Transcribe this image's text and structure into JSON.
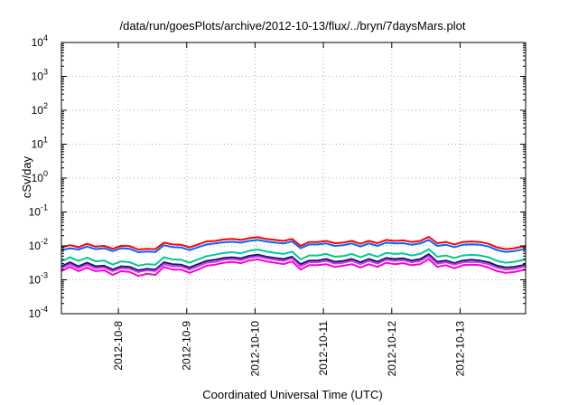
{
  "chart_data": {
    "type": "line",
    "title": "/data/run/goesPlots/archive/2012-10-13/flux/../bryn/7daysMars.plot",
    "xlabel": "Coordinated Universal Time (UTC)",
    "ylabel": "cSv/day",
    "yscale": "log",
    "ylim": [
      0.0001,
      10000
    ],
    "y_ticks": [
      {
        "base": "10",
        "exp": "4",
        "value": 10000
      },
      {
        "base": "10",
        "exp": "3",
        "value": 1000
      },
      {
        "base": "10",
        "exp": "2",
        "value": 100
      },
      {
        "base": "10",
        "exp": "1",
        "value": 10
      },
      {
        "base": "10",
        "exp": "0",
        "value": 1
      },
      {
        "base": "10",
        "exp": "-1",
        "value": 0.1
      },
      {
        "base": "10",
        "exp": "-2",
        "value": 0.01
      },
      {
        "base": "10",
        "exp": "-3",
        "value": 0.001
      },
      {
        "base": "10",
        "exp": "-4",
        "value": 0.0001
      }
    ],
    "xlim": [
      "2012-10-07 04:00",
      "2012-10-13 23:00"
    ],
    "x_ticks": [
      "2012-10-8",
      "2012-10-9",
      "2012-10-10",
      "2012-10-11",
      "2012-10-12",
      "2012-10-13"
    ],
    "x_tick_dates": [
      "2012-10-08",
      "2012-10-09",
      "2012-10-10",
      "2012-10-11",
      "2012-10-12",
      "2012-10-13"
    ],
    "grid": true,
    "x": [
      "2012-10-07 04:00",
      "2012-10-07 07:00",
      "2012-10-07 10:00",
      "2012-10-07 13:00",
      "2012-10-07 16:00",
      "2012-10-07 19:00",
      "2012-10-07 22:00",
      "2012-10-08 01:00",
      "2012-10-08 04:00",
      "2012-10-08 07:00",
      "2012-10-08 10:00",
      "2012-10-08 13:00",
      "2012-10-08 16:00",
      "2012-10-08 19:00",
      "2012-10-08 22:00",
      "2012-10-09 01:00",
      "2012-10-09 04:00",
      "2012-10-09 07:00",
      "2012-10-09 10:00",
      "2012-10-09 13:00",
      "2012-10-09 16:00",
      "2012-10-09 19:00",
      "2012-10-09 22:00",
      "2012-10-10 01:00",
      "2012-10-10 04:00",
      "2012-10-10 07:00",
      "2012-10-10 10:00",
      "2012-10-10 13:00",
      "2012-10-10 16:00",
      "2012-10-10 19:00",
      "2012-10-10 22:00",
      "2012-10-11 01:00",
      "2012-10-11 04:00",
      "2012-10-11 07:00",
      "2012-10-11 10:00",
      "2012-10-11 13:00",
      "2012-10-11 16:00",
      "2012-10-11 19:00",
      "2012-10-11 22:00",
      "2012-10-12 01:00",
      "2012-10-12 04:00",
      "2012-10-12 07:00",
      "2012-10-12 10:00",
      "2012-10-12 13:00",
      "2012-10-12 16:00",
      "2012-10-12 19:00",
      "2012-10-12 22:00",
      "2012-10-13 01:00",
      "2012-10-13 04:00",
      "2012-10-13 07:00",
      "2012-10-13 10:00",
      "2012-10-13 13:00",
      "2012-10-13 16:00",
      "2012-10-13 19:00",
      "2012-10-13 23:00"
    ],
    "series": [
      {
        "color": "#ff0000",
        "values": [
          0.009,
          0.0105,
          0.0092,
          0.0115,
          0.0095,
          0.01,
          0.0082,
          0.01,
          0.0098,
          0.0078,
          0.0082,
          0.008,
          0.0125,
          0.011,
          0.0108,
          0.009,
          0.011,
          0.0135,
          0.014,
          0.0155,
          0.016,
          0.015,
          0.017,
          0.018,
          0.016,
          0.015,
          0.014,
          0.016,
          0.01,
          0.013,
          0.013,
          0.014,
          0.012,
          0.0125,
          0.014,
          0.0115,
          0.014,
          0.012,
          0.015,
          0.014,
          0.0145,
          0.013,
          0.014,
          0.0185,
          0.012,
          0.013,
          0.011,
          0.013,
          0.0135,
          0.013,
          0.0115,
          0.009,
          0.008,
          0.0085,
          0.01
        ]
      },
      {
        "color": "#0066ff",
        "values": [
          0.0075,
          0.0085,
          0.0078,
          0.0095,
          0.008,
          0.0085,
          0.007,
          0.0085,
          0.0082,
          0.0065,
          0.0068,
          0.0066,
          0.0105,
          0.0092,
          0.009,
          0.0075,
          0.0092,
          0.011,
          0.0118,
          0.0128,
          0.0132,
          0.0125,
          0.014,
          0.015,
          0.0135,
          0.0125,
          0.0118,
          0.0135,
          0.0085,
          0.011,
          0.011,
          0.0118,
          0.01,
          0.0105,
          0.0118,
          0.0096,
          0.0118,
          0.01,
          0.0125,
          0.0118,
          0.012,
          0.0108,
          0.0118,
          0.015,
          0.01,
          0.0108,
          0.0092,
          0.0108,
          0.0112,
          0.0108,
          0.0096,
          0.0075,
          0.0066,
          0.007,
          0.0082
        ]
      },
      {
        "color": "#00c89b",
        "values": [
          0.0035,
          0.0046,
          0.0036,
          0.0045,
          0.0035,
          0.0037,
          0.0028,
          0.0035,
          0.0033,
          0.0026,
          0.0029,
          0.0028,
          0.0046,
          0.004,
          0.0039,
          0.0032,
          0.004,
          0.005,
          0.0055,
          0.0062,
          0.0065,
          0.006,
          0.0072,
          0.0078,
          0.0068,
          0.0062,
          0.0058,
          0.0068,
          0.004,
          0.0052,
          0.0052,
          0.0058,
          0.0048,
          0.005,
          0.0058,
          0.0046,
          0.0058,
          0.0048,
          0.0062,
          0.0058,
          0.006,
          0.0052,
          0.0058,
          0.008,
          0.0048,
          0.0052,
          0.0044,
          0.0052,
          0.0055,
          0.0052,
          0.0046,
          0.0036,
          0.0032,
          0.0034,
          0.004
        ]
      },
      {
        "color": "#1a1a55",
        "values": [
          0.0025,
          0.0033,
          0.0025,
          0.0032,
          0.0025,
          0.0026,
          0.002,
          0.0025,
          0.0024,
          0.0019,
          0.0021,
          0.002,
          0.0033,
          0.0029,
          0.0028,
          0.0023,
          0.0029,
          0.0036,
          0.0039,
          0.0044,
          0.0046,
          0.0043,
          0.0051,
          0.0055,
          0.0048,
          0.0044,
          0.0041,
          0.0048,
          0.0029,
          0.0037,
          0.0037,
          0.0041,
          0.0034,
          0.0036,
          0.0041,
          0.0033,
          0.0041,
          0.0034,
          0.0044,
          0.0041,
          0.0043,
          0.0037,
          0.0041,
          0.0057,
          0.0034,
          0.0037,
          0.0031,
          0.0037,
          0.0039,
          0.0037,
          0.0033,
          0.0026,
          0.0023,
          0.0024,
          0.0028
        ]
      },
      {
        "color": "#cc33ff",
        "values": [
          0.0022,
          0.0029,
          0.0022,
          0.0028,
          0.0022,
          0.0023,
          0.0018,
          0.0022,
          0.0021,
          0.0017,
          0.0019,
          0.0018,
          0.0029,
          0.0025,
          0.0025,
          0.002,
          0.0025,
          0.0032,
          0.0034,
          0.0039,
          0.0041,
          0.0038,
          0.0045,
          0.0049,
          0.0043,
          0.0039,
          0.0036,
          0.0043,
          0.0025,
          0.0033,
          0.0033,
          0.0036,
          0.003,
          0.0032,
          0.0036,
          0.0029,
          0.0036,
          0.003,
          0.0039,
          0.0036,
          0.0038,
          0.0033,
          0.0036,
          0.005,
          0.003,
          0.0033,
          0.0028,
          0.0033,
          0.0034,
          0.0033,
          0.0029,
          0.0023,
          0.002,
          0.0021,
          0.0025
        ]
      },
      {
        "color": "#ff00cc",
        "values": [
          0.0018,
          0.0024,
          0.0018,
          0.0023,
          0.0018,
          0.0019,
          0.0014,
          0.0018,
          0.0017,
          0.0013,
          0.0015,
          0.0014,
          0.0024,
          0.002,
          0.002,
          0.0016,
          0.002,
          0.0026,
          0.0028,
          0.0032,
          0.0034,
          0.0031,
          0.0037,
          0.004,
          0.0035,
          0.0032,
          0.0029,
          0.0035,
          0.002,
          0.0027,
          0.0027,
          0.0029,
          0.0024,
          0.0026,
          0.0029,
          0.0023,
          0.0029,
          0.0024,
          0.0032,
          0.0029,
          0.0031,
          0.0027,
          0.0029,
          0.0041,
          0.0024,
          0.0027,
          0.0022,
          0.0027,
          0.0028,
          0.0027,
          0.0023,
          0.0018,
          0.0016,
          0.0017,
          0.002
        ]
      }
    ]
  }
}
